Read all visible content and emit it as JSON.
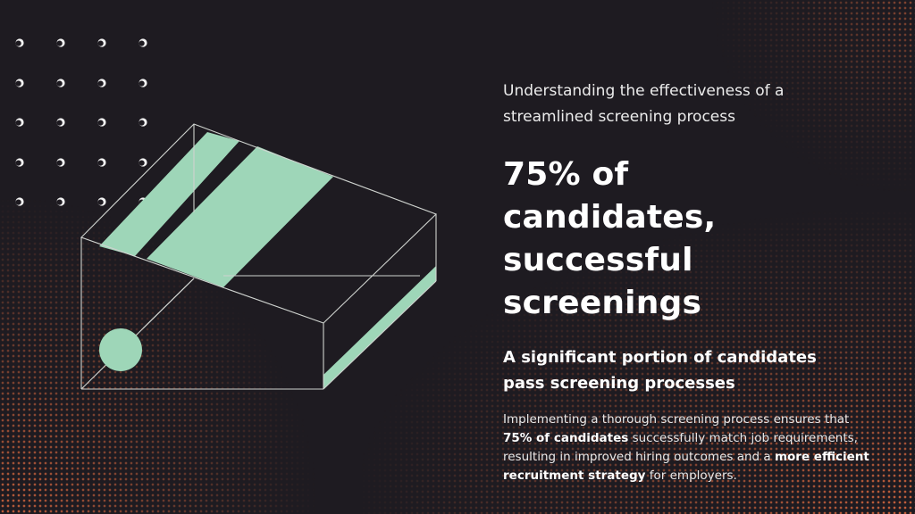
{
  "colors": {
    "background": "#1e1b21",
    "accent": "#9ed6b8",
    "halftone": "#d8683f",
    "line": "#cfd3cf",
    "text": "#ffffff"
  },
  "slide": {
    "eyebrow": "Understanding the effectiveness of a streamlined screening process",
    "headline": "75% of candidates, successful screenings",
    "subheading": "A significant portion of candidates pass screening processes",
    "body": {
      "part1": "Implementing a thorough screening process ensures that ",
      "bold1": "75% of candidates",
      "part2": " successfully match job requirements, resulting in improved hiring outcomes and a ",
      "bold2": "more efficient recruitment strategy",
      "part3": " for employers."
    }
  },
  "decor": {
    "dot_grid_icon": "ring-dot-grid-icon",
    "box_icon": "open-box-outline-icon",
    "circle_icon": "mint-circle-icon"
  }
}
